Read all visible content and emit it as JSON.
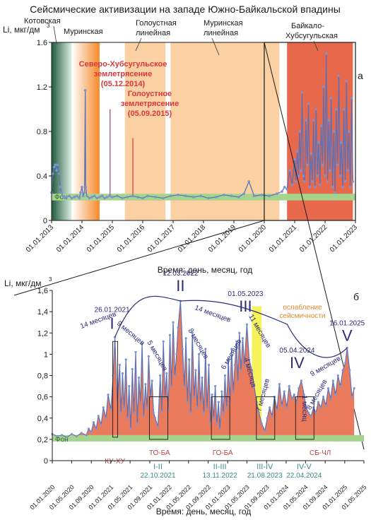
{
  "figure": {
    "title": "Сейсмические активизации на западе Южно-Байкальской впадины"
  },
  "colors": {
    "series": "#5b72b8",
    "marker": "#7e92d2",
    "fill": "#ea7a5c",
    "fon": "#a6d48c",
    "kotovskaya": "#5b8a72",
    "murinskaya": "#f7a35c",
    "interval": "#fbd1a4",
    "baikal": "#e8684c",
    "weakening": "#f6f25a",
    "quake": "#d9373b",
    "quake2": "#a03a8a",
    "peak": "#2a2c7a",
    "orange_text": "#e08a2a",
    "red_text": "#b84848",
    "teal_text": "#3e8a8a"
  },
  "chart_data": [
    {
      "type": "line",
      "panel_label": "а",
      "ylabel": "Li, мкг/дм",
      "ylabel_sup": "3",
      "xlabel": "Время: день, месяц, год",
      "ylim": [
        0,
        1.6
      ],
      "xlim": [
        "01.01.2013",
        "01.01.2023"
      ],
      "y_ticks": [
        "0",
        "0.4",
        "0.8",
        "1.2",
        "1.6"
      ],
      "x_ticks": [
        "01.01.2013",
        "01.01.2014",
        "01.01.2015",
        "01.01.2016",
        "01.01.2017",
        "01.01.2018",
        "01.01.2019",
        "01.01.2020",
        "01.01.2021",
        "01.01.2022",
        "01.01.2023"
      ],
      "background_level": {
        "label": "Фон",
        "y": [
          0.18,
          0.24
        ]
      },
      "bands": [
        {
          "label": "Котовская",
          "from": "01.01.2013",
          "to": "01.09.2013",
          "color": "kotovskaya",
          "style": "gradient"
        },
        {
          "label": "Муринская",
          "from": "01.09.2013",
          "to": "01.08.2014",
          "color": "murinskaya",
          "style": "gradient"
        },
        {
          "label": "Голоустная линейная",
          "from": "01.06.2015",
          "to": "01.10.2016",
          "color": "interval",
          "style": "solid"
        },
        {
          "label": "Муринская линейная",
          "from": "01.12.2016",
          "to": "01.07.2020",
          "color": "interval",
          "style": "solid"
        },
        {
          "label": "Байкало-Хубсугульская",
          "from": "01.10.2020",
          "to": "01.12.2022",
          "color": "baikal",
          "style": "solid"
        }
      ],
      "annotations": [
        {
          "title": "Северо-Хубсугульское",
          "line2": "землетрясение",
          "date": "05.12.2014",
          "color": "quake2"
        },
        {
          "title": "Голоустное",
          "line2": "землетрясение",
          "date": "05.09.2015",
          "color": "quake"
        }
      ],
      "series": [
        {
          "x": [
            "01.01.2013",
            "15.01.2013",
            "01.02.2013",
            "15.02.2013",
            "01.03.2013",
            "15.03.2013",
            "01.04.2013",
            "15.04.2013",
            "01.05.2013",
            "15.05.2013",
            "01.06.2013",
            "15.06.2013",
            "01.07.2013",
            "01.08.2013",
            "01.09.2013",
            "01.10.2013",
            "01.11.2013",
            "01.12.2013",
            "15.12.2013",
            "01.01.2014",
            "15.01.2014",
            "01.02.2014",
            "10.02.2014",
            "15.02.2014",
            "01.03.2014",
            "01.04.2014",
            "01.05.2014",
            "01.06.2014",
            "01.07.2014",
            "01.08.2014",
            "01.09.2014",
            "01.10.2014",
            "01.11.2014",
            "01.12.2014",
            "01.01.2015",
            "01.03.2015",
            "01.05.2015",
            "01.07.2015",
            "01.09.2015",
            "01.11.2015",
            "01.01.2016",
            "01.03.2016",
            "01.06.2016",
            "01.09.2016",
            "01.12.2016",
            "01.03.2017",
            "01.06.2017",
            "01.09.2017",
            "01.12.2017",
            "01.03.2018",
            "01.06.2018",
            "01.09.2018",
            "01.12.2018",
            "01.03.2019",
            "01.05.2019",
            "01.07.2019",
            "01.09.2019",
            "01.12.2019",
            "01.03.2020",
            "01.06.2020",
            "01.08.2020",
            "01.09.2020",
            "01.10.2020",
            "01.11.2020",
            "01.12.2020",
            "01.01.2021",
            "15.01.2021",
            "01.02.2021",
            "15.02.2021",
            "01.03.2021",
            "15.03.2021",
            "01.04.2021",
            "15.04.2021",
            "01.05.2021",
            "15.05.2021",
            "01.06.2021",
            "15.06.2021",
            "01.07.2021",
            "15.07.2021",
            "01.08.2021",
            "15.08.2021",
            "01.09.2021",
            "15.09.2021",
            "01.10.2021",
            "15.10.2021",
            "01.11.2021",
            "15.11.2021",
            "01.12.2021",
            "15.12.2021",
            "01.01.2022",
            "15.01.2022",
            "01.02.2022",
            "15.02.2022",
            "01.03.2022",
            "15.03.2022",
            "01.04.2022",
            "15.04.2022",
            "01.05.2022",
            "15.05.2022",
            "01.06.2022",
            "15.06.2022",
            "01.07.2022",
            "15.07.2022",
            "01.08.2022",
            "15.08.2022",
            "01.09.2022",
            "15.09.2022",
            "01.10.2022",
            "15.10.2022",
            "01.11.2022",
            "15.11.2022",
            "01.12.2022"
          ],
          "y": [
            0.25,
            0.42,
            0.48,
            0.5,
            0.45,
            0.5,
            0.42,
            0.3,
            0.25,
            0.22,
            0.21,
            0.2,
            0.21,
            0.22,
            0.2,
            0.21,
            0.22,
            0.2,
            0.25,
            0.3,
            0.22,
            0.25,
            1.17,
            0.3,
            0.22,
            0.2,
            0.21,
            0.22,
            0.2,
            0.21,
            0.22,
            0.2,
            0.21,
            0.22,
            0.21,
            0.22,
            0.2,
            0.21,
            0.22,
            0.21,
            0.2,
            0.22,
            0.21,
            0.2,
            0.22,
            0.23,
            0.22,
            0.21,
            0.22,
            0.2,
            0.21,
            0.23,
            0.22,
            0.21,
            0.24,
            0.35,
            0.22,
            0.23,
            0.22,
            0.24,
            0.26,
            0.3,
            0.28,
            0.45,
            0.32,
            0.55,
            0.35,
            0.62,
            0.4,
            0.8,
            0.45,
            1.15,
            0.4,
            0.35,
            0.9,
            0.5,
            1.05,
            0.3,
            0.6,
            0.35,
            0.9,
            0.3,
            1.0,
            0.4,
            0.7,
            0.32,
            0.85,
            0.5,
            1.2,
            0.4,
            1.5,
            0.35,
            0.9,
            0.45,
            1.1,
            0.3,
            0.8,
            0.25,
            1.0,
            0.5,
            1.3,
            0.4,
            0.7,
            0.3,
            1.0,
            0.35,
            1.25,
            0.45,
            0.8,
            0.3,
            1.1,
            0.35
          ]
        }
      ]
    },
    {
      "type": "area",
      "panel_label": "б",
      "ylabel": "Li, мкг/дм",
      "ylabel_sup": "3",
      "xlabel": "Время: день, месяц, год",
      "ylim": [
        0,
        1.6
      ],
      "xlim": [
        "01.01.2020",
        "01.05.2025"
      ],
      "y_ticks": [
        "0",
        "0,2",
        "0,4",
        "0,6",
        "0,8",
        "1",
        "1,2",
        "1,4",
        "1,6"
      ],
      "x_ticks": [
        "01.01.2020",
        "01.05.2020",
        "01.09.2020",
        "01.01.2021",
        "01.05.2021",
        "01.09.2021",
        "01.01.2022",
        "01.05.2022",
        "01.09.2022",
        "01.01.2023",
        "01.05.2023",
        "01.09.2023",
        "01.01.2024",
        "01.05.2024",
        "01.09.2024",
        "01.01.2025",
        "01.05.2025"
      ],
      "background_level": {
        "label": "Фон",
        "y": [
          0.18,
          0.24
        ]
      },
      "weakening": {
        "label1": "ослабление",
        "label2": "сейсмичности",
        "from": "01.06.2023",
        "to": "01.08.2023"
      },
      "peaks": [
        {
          "label": "I",
          "date": "26.01.2021",
          "y": 1.16
        },
        {
          "label": "II",
          "date": "12.03.2022",
          "y": 1.5
        },
        {
          "label": "III",
          "date": "01.05.2023",
          "y": 1.28
        },
        {
          "label": "IV",
          "date": "05.04.2024",
          "y": 0.75
        },
        {
          "label": "V",
          "date": "16.01.2025",
          "y": 1.06
        }
      ],
      "transitions": [
        {
          "label": "I-II",
          "date": "22.10.2021"
        },
        {
          "label": "II-III",
          "date": "13.11.2022"
        },
        {
          "label": "III-IV",
          "date": "21.08.2023"
        },
        {
          "label": "IV-V",
          "date": "22.04.2024"
        }
      ],
      "zone_labels": [
        {
          "label": "КУ-ХУ",
          "date": "26.01.2021"
        },
        {
          "label": "ТО-БА",
          "date": "01.11.2021"
        },
        {
          "label": "ГО-БА",
          "date": "01.12.2022"
        },
        {
          "label": "СБ-ЧЛ",
          "date": "01.08.2024"
        }
      ],
      "arc_labels": [
        "14 месяцев",
        "14 месяцев",
        "11 месяцев",
        "9 месяцев",
        "5 месяцев",
        "8 месяцев",
        "6 месяцев",
        "4 месяца",
        "7 месяцев",
        "1 месяц",
        "8 месяцев",
        "9 месяцев"
      ],
      "series": [
        {
          "x": [
            "01.01.2020",
            "01.02.2020",
            "01.03.2020",
            "01.04.2020",
            "01.05.2020",
            "01.06.2020",
            "01.07.2020",
            "01.08.2020",
            "15.08.2020",
            "01.09.2020",
            "15.09.2020",
            "01.10.2020",
            "15.10.2020",
            "01.11.2020",
            "15.11.2020",
            "01.12.2020",
            "15.12.2020",
            "01.01.2021",
            "15.01.2021",
            "26.01.2021",
            "10.02.2021",
            "25.02.2021",
            "05.03.2021",
            "15.03.2021",
            "25.03.2021",
            "05.04.2021",
            "15.04.2021",
            "25.04.2021",
            "05.05.2021",
            "15.05.2021",
            "25.05.2021",
            "05.06.2021",
            "15.06.2021",
            "25.06.2021",
            "05.07.2021",
            "15.07.2021",
            "25.07.2021",
            "05.08.2021",
            "15.08.2021",
            "25.08.2021",
            "05.09.2021",
            "15.09.2021",
            "25.09.2021",
            "05.10.2021",
            "22.10.2021",
            "05.11.2021",
            "15.11.2021",
            "25.11.2021",
            "05.12.2021",
            "15.12.2021",
            "25.12.2021",
            "05.01.2022",
            "15.01.2022",
            "25.01.2022",
            "05.02.2022",
            "15.02.2022",
            "25.02.2022",
            "12.03.2022",
            "25.03.2022",
            "05.04.2022",
            "15.04.2022",
            "25.04.2022",
            "05.05.2022",
            "15.05.2022",
            "25.05.2022",
            "05.06.2022",
            "15.06.2022",
            "25.06.2022",
            "05.07.2022",
            "15.07.2022",
            "25.07.2022",
            "05.08.2022",
            "15.08.2022",
            "25.08.2022",
            "05.09.2022",
            "15.09.2022",
            "25.09.2022",
            "05.10.2022",
            "15.10.2022",
            "25.10.2022",
            "05.11.2022",
            "13.11.2022",
            "25.11.2022",
            "05.12.2022",
            "15.12.2022",
            "25.12.2022",
            "05.01.2023",
            "15.01.2023",
            "25.01.2023",
            "05.02.2023",
            "15.02.2023",
            "25.02.2023",
            "05.03.2023",
            "15.03.2023",
            "25.03.2023",
            "05.04.2023",
            "15.04.2023",
            "01.05.2023",
            "15.05.2023",
            "01.06.2023",
            "15.06.2023",
            "01.07.2023",
            "15.07.2023",
            "01.08.2023",
            "21.08.2023",
            "05.09.2023",
            "20.09.2023",
            "05.10.2023",
            "20.10.2023",
            "05.11.2023",
            "20.11.2023",
            "05.12.2023",
            "20.12.2023",
            "05.01.2024",
            "20.01.2024",
            "05.02.2024",
            "20.02.2024",
            "05.03.2024",
            "20.03.2024",
            "05.04.2024",
            "22.04.2024",
            "05.05.2024",
            "20.05.2024",
            "05.06.2024",
            "20.06.2024",
            "05.07.2024",
            "20.07.2024",
            "05.08.2024",
            "20.08.2024",
            "05.09.2024",
            "20.09.2024",
            "05.10.2024",
            "20.10.2024",
            "05.11.2024",
            "20.11.2024",
            "05.12.2024",
            "20.12.2024",
            "05.01.2025",
            "16.01.2025",
            "01.02.2025",
            "15.02.2025",
            "01.03.2025"
          ],
          "y": [
            0.25,
            0.23,
            0.24,
            0.22,
            0.25,
            0.23,
            0.26,
            0.24,
            0.3,
            0.27,
            0.36,
            0.3,
            0.42,
            0.34,
            0.5,
            0.4,
            0.62,
            0.48,
            0.8,
            1.16,
            0.55,
            0.9,
            0.45,
            0.82,
            0.5,
            0.95,
            0.4,
            0.7,
            0.3,
            0.86,
            0.45,
            1.02,
            0.35,
            0.78,
            0.55,
            1.1,
            0.42,
            0.72,
            0.5,
            0.98,
            0.6,
            0.75,
            0.45,
            0.4,
            0.32,
            0.8,
            0.46,
            1.12,
            0.6,
            0.82,
            0.48,
            1.18,
            0.7,
            1.3,
            0.8,
            1.0,
            1.25,
            1.5,
            1.05,
            0.7,
            1.15,
            0.55,
            0.95,
            0.45,
            1.2,
            0.6,
            0.85,
            0.5,
            1.0,
            0.55,
            0.78,
            0.45,
            1.05,
            0.5,
            0.9,
            0.35,
            0.62,
            0.4,
            0.7,
            0.35,
            0.55,
            0.3,
            0.65,
            0.45,
            0.8,
            0.5,
            0.95,
            0.55,
            1.05,
            0.65,
            0.9,
            1.12,
            0.75,
            1.2,
            0.85,
            1.15,
            0.9,
            1.28,
            0.95,
            0.85,
            0.7,
            0.55,
            0.45,
            0.35,
            0.28,
            0.4,
            0.5,
            0.42,
            0.6,
            0.48,
            0.72,
            0.52,
            0.65,
            0.5,
            0.7,
            0.58,
            0.62,
            0.55,
            0.68,
            0.75,
            0.62,
            0.5,
            0.45,
            0.42,
            0.5,
            0.45,
            0.55,
            0.5,
            0.6,
            0.52,
            0.68,
            0.58,
            0.75,
            0.62,
            0.8,
            0.7,
            0.85,
            0.92,
            1.06,
            0.85,
            0.6,
            0.68
          ]
        }
      ]
    }
  ]
}
